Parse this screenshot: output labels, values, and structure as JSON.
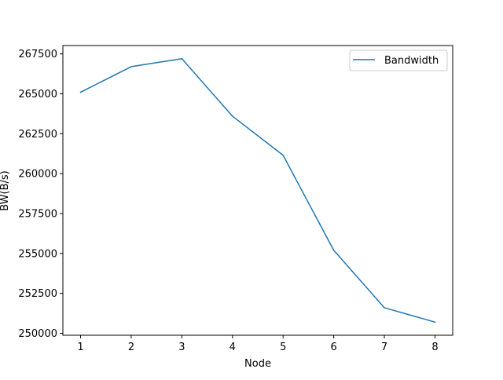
{
  "chart_data": {
    "type": "line",
    "title": "",
    "xlabel": "Node",
    "ylabel": "BW(B/s)",
    "x": [
      1,
      2,
      3,
      4,
      5,
      6,
      7,
      8
    ],
    "series": [
      {
        "name": "Bandwidth",
        "color": "#1f77b4",
        "values": [
          265100,
          266700,
          267200,
          263600,
          261150,
          255200,
          251600,
          250700
        ]
      }
    ],
    "xticks": [
      "1",
      "2",
      "3",
      "4",
      "5",
      "6",
      "7",
      "8"
    ],
    "yticks": [
      "250000",
      "252500",
      "255000",
      "257500",
      "260000",
      "262500",
      "265000",
      "267500"
    ],
    "xlim": [
      0.65,
      8.35
    ],
    "ylim": [
      249876,
      268024
    ],
    "grid": false,
    "legend_position": "upper right"
  }
}
